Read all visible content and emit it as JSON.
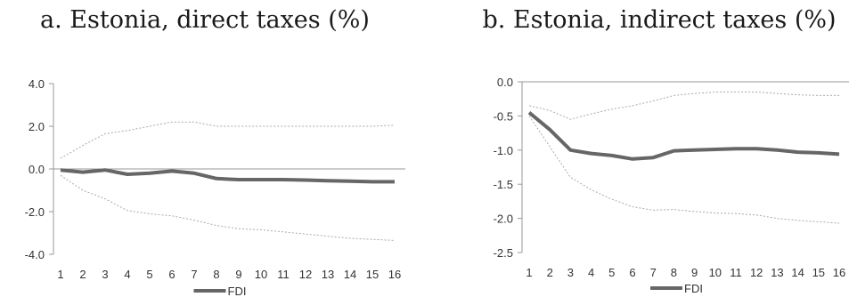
{
  "chart_data": [
    {
      "type": "line",
      "title": "a. Estonia, direct taxes (%)",
      "x": [
        1,
        2,
        3,
        4,
        5,
        6,
        7,
        8,
        9,
        10,
        11,
        12,
        13,
        14,
        15,
        16
      ],
      "ylim": [
        -4.0,
        4.0
      ],
      "yticks": [
        "4.0",
        "2.0",
        "0.0",
        "-2.0",
        "-4.0"
      ],
      "yticks_values": [
        4.0,
        2.0,
        0.0,
        -2.0,
        -4.0
      ],
      "legend": "bottom-center",
      "grid": false,
      "series": [
        {
          "name": "FDI",
          "role": "main",
          "color": "#666666",
          "values": [
            -0.05,
            -0.15,
            -0.05,
            -0.25,
            -0.2,
            -0.1,
            -0.2,
            -0.45,
            -0.5,
            -0.5,
            -0.5,
            -0.52,
            -0.55,
            -0.57,
            -0.6,
            -0.6
          ]
        },
        {
          "role": "upper",
          "color": "#aaaaaa",
          "values": [
            0.5,
            1.1,
            1.65,
            1.8,
            2.0,
            2.2,
            2.2,
            2.0,
            2.0,
            2.0,
            2.0,
            2.0,
            2.0,
            2.0,
            2.0,
            2.05
          ]
        },
        {
          "role": "lower",
          "color": "#aaaaaa",
          "values": [
            -0.3,
            -1.0,
            -1.4,
            -1.95,
            -2.1,
            -2.2,
            -2.4,
            -2.65,
            -2.8,
            -2.85,
            -2.95,
            -3.05,
            -3.15,
            -3.25,
            -3.3,
            -3.35
          ]
        }
      ]
    },
    {
      "type": "line",
      "title": "b. Estonia, indirect taxes (%)",
      "x": [
        1,
        2,
        3,
        4,
        5,
        6,
        7,
        8,
        9,
        10,
        11,
        12,
        13,
        14,
        15,
        16
      ],
      "ylim": [
        -2.5,
        0.0
      ],
      "yticks": [
        "0.0",
        "-0.5",
        "-1.0",
        "-1.5",
        "-2.0",
        "-2.5"
      ],
      "yticks_values": [
        0.0,
        -0.5,
        -1.0,
        -1.5,
        -2.0,
        -2.5
      ],
      "legend": "bottom-center",
      "grid": false,
      "series": [
        {
          "name": "FDI",
          "role": "main",
          "color": "#666666",
          "values": [
            -0.45,
            -0.7,
            -1.0,
            -1.05,
            -1.08,
            -1.13,
            -1.11,
            -1.01,
            -1.0,
            -0.99,
            -0.98,
            -0.98,
            -1.0,
            -1.03,
            -1.04,
            -1.06
          ]
        },
        {
          "role": "upper",
          "color": "#aaaaaa",
          "values": [
            -0.35,
            -0.42,
            -0.55,
            -0.47,
            -0.4,
            -0.35,
            -0.28,
            -0.2,
            -0.17,
            -0.15,
            -0.15,
            -0.15,
            -0.17,
            -0.19,
            -0.2,
            -0.2
          ]
        },
        {
          "role": "lower",
          "color": "#aaaaaa",
          "values": [
            -0.5,
            -0.95,
            -1.4,
            -1.58,
            -1.72,
            -1.83,
            -1.88,
            -1.87,
            -1.9,
            -1.92,
            -1.93,
            -1.95,
            -2.0,
            -2.03,
            -2.05,
            -2.07
          ]
        }
      ]
    }
  ]
}
